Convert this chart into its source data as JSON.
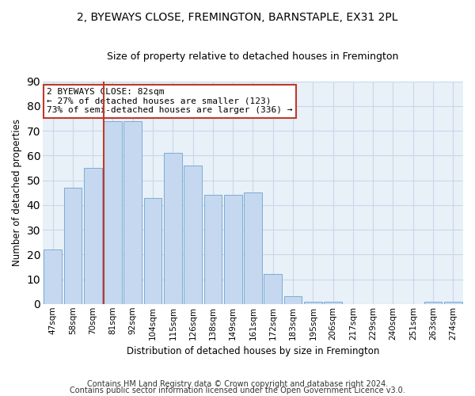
{
  "title": "2, BYEWAYS CLOSE, FREMINGTON, BARNSTAPLE, EX31 2PL",
  "subtitle": "Size of property relative to detached houses in Fremington",
  "xlabel": "Distribution of detached houses by size in Fremington",
  "ylabel": "Number of detached properties",
  "footnote1": "Contains HM Land Registry data © Crown copyright and database right 2024.",
  "footnote2": "Contains public sector information licensed under the Open Government Licence v3.0.",
  "categories": [
    "47sqm",
    "58sqm",
    "70sqm",
    "81sqm",
    "92sqm",
    "104sqm",
    "115sqm",
    "126sqm",
    "138sqm",
    "149sqm",
    "161sqm",
    "172sqm",
    "183sqm",
    "195sqm",
    "206sqm",
    "217sqm",
    "229sqm",
    "240sqm",
    "251sqm",
    "263sqm",
    "274sqm"
  ],
  "values": [
    22,
    47,
    55,
    74,
    74,
    43,
    61,
    56,
    44,
    44,
    45,
    12,
    3,
    1,
    1,
    0,
    0,
    0,
    0,
    1,
    1
  ],
  "bar_color": "#c5d8f0",
  "bar_edge_color": "#7badd4",
  "property_bin_index": 3,
  "vline_color": "#c0392b",
  "annotation_text": "2 BYEWAYS CLOSE: 82sqm\n← 27% of detached houses are smaller (123)\n73% of semi-detached houses are larger (336) →",
  "annotation_box_color": "white",
  "annotation_box_edge_color": "#c0392b",
  "ylim": [
    0,
    90
  ],
  "yticks": [
    0,
    10,
    20,
    30,
    40,
    50,
    60,
    70,
    80,
    90
  ],
  "grid_color": "#c8d8e8",
  "bg_color": "#e8f0f8",
  "title_fontsize": 10,
  "subtitle_fontsize": 9,
  "footnote_fontsize": 7
}
